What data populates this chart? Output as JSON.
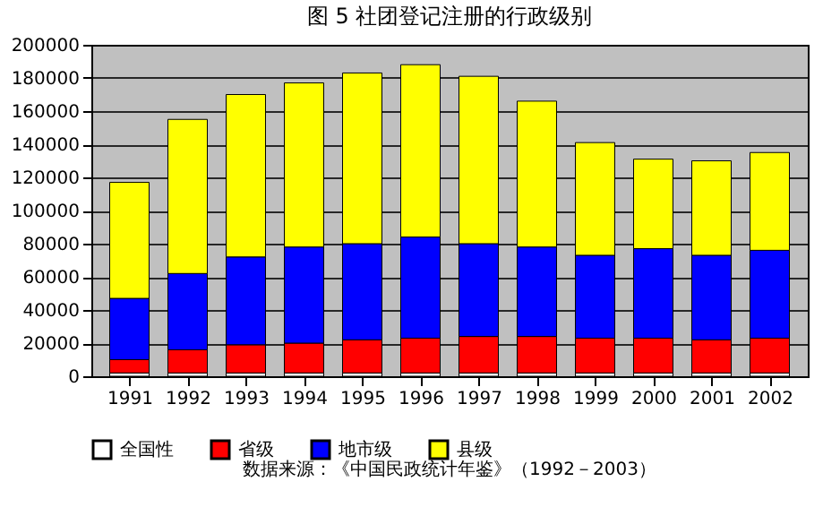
{
  "chart_data": {
    "type": "bar",
    "stacked": true,
    "title": "图 5 社团登记注册的行政级别",
    "categories": [
      "1991",
      "1992",
      "1993",
      "1994",
      "1995",
      "1996",
      "1997",
      "1998",
      "1999",
      "2000",
      "2001",
      "2002"
    ],
    "series": [
      {
        "name": "全国性",
        "color": "#ffffff",
        "values": [
          2000,
          2000,
          2000,
          2000,
          2000,
          2000,
          2000,
          2000,
          2000,
          2000,
          2000,
          2000
        ]
      },
      {
        "name": "省级",
        "color": "#ff0000",
        "values": [
          8000,
          14000,
          17000,
          18000,
          20000,
          21000,
          22000,
          22000,
          21000,
          21000,
          20000,
          21000
        ]
      },
      {
        "name": "地市级",
        "color": "#0000ff",
        "values": [
          37000,
          46000,
          53000,
          58000,
          58000,
          61000,
          56000,
          54000,
          50000,
          54000,
          51000,
          53000
        ]
      },
      {
        "name": "县级",
        "color": "#ffff00",
        "values": [
          70000,
          93000,
          98000,
          99000,
          103000,
          104000,
          101000,
          88000,
          68000,
          54000,
          57000,
          59000
        ]
      }
    ],
    "ylim": [
      0,
      200000
    ],
    "yticks": [
      0,
      20000,
      40000,
      60000,
      80000,
      100000,
      120000,
      140000,
      160000,
      180000,
      200000
    ],
    "grid": "y",
    "legend": "bottom",
    "annotations": [
      "数据来源：《中国民政统计年鉴》（1992－2003）"
    ]
  }
}
